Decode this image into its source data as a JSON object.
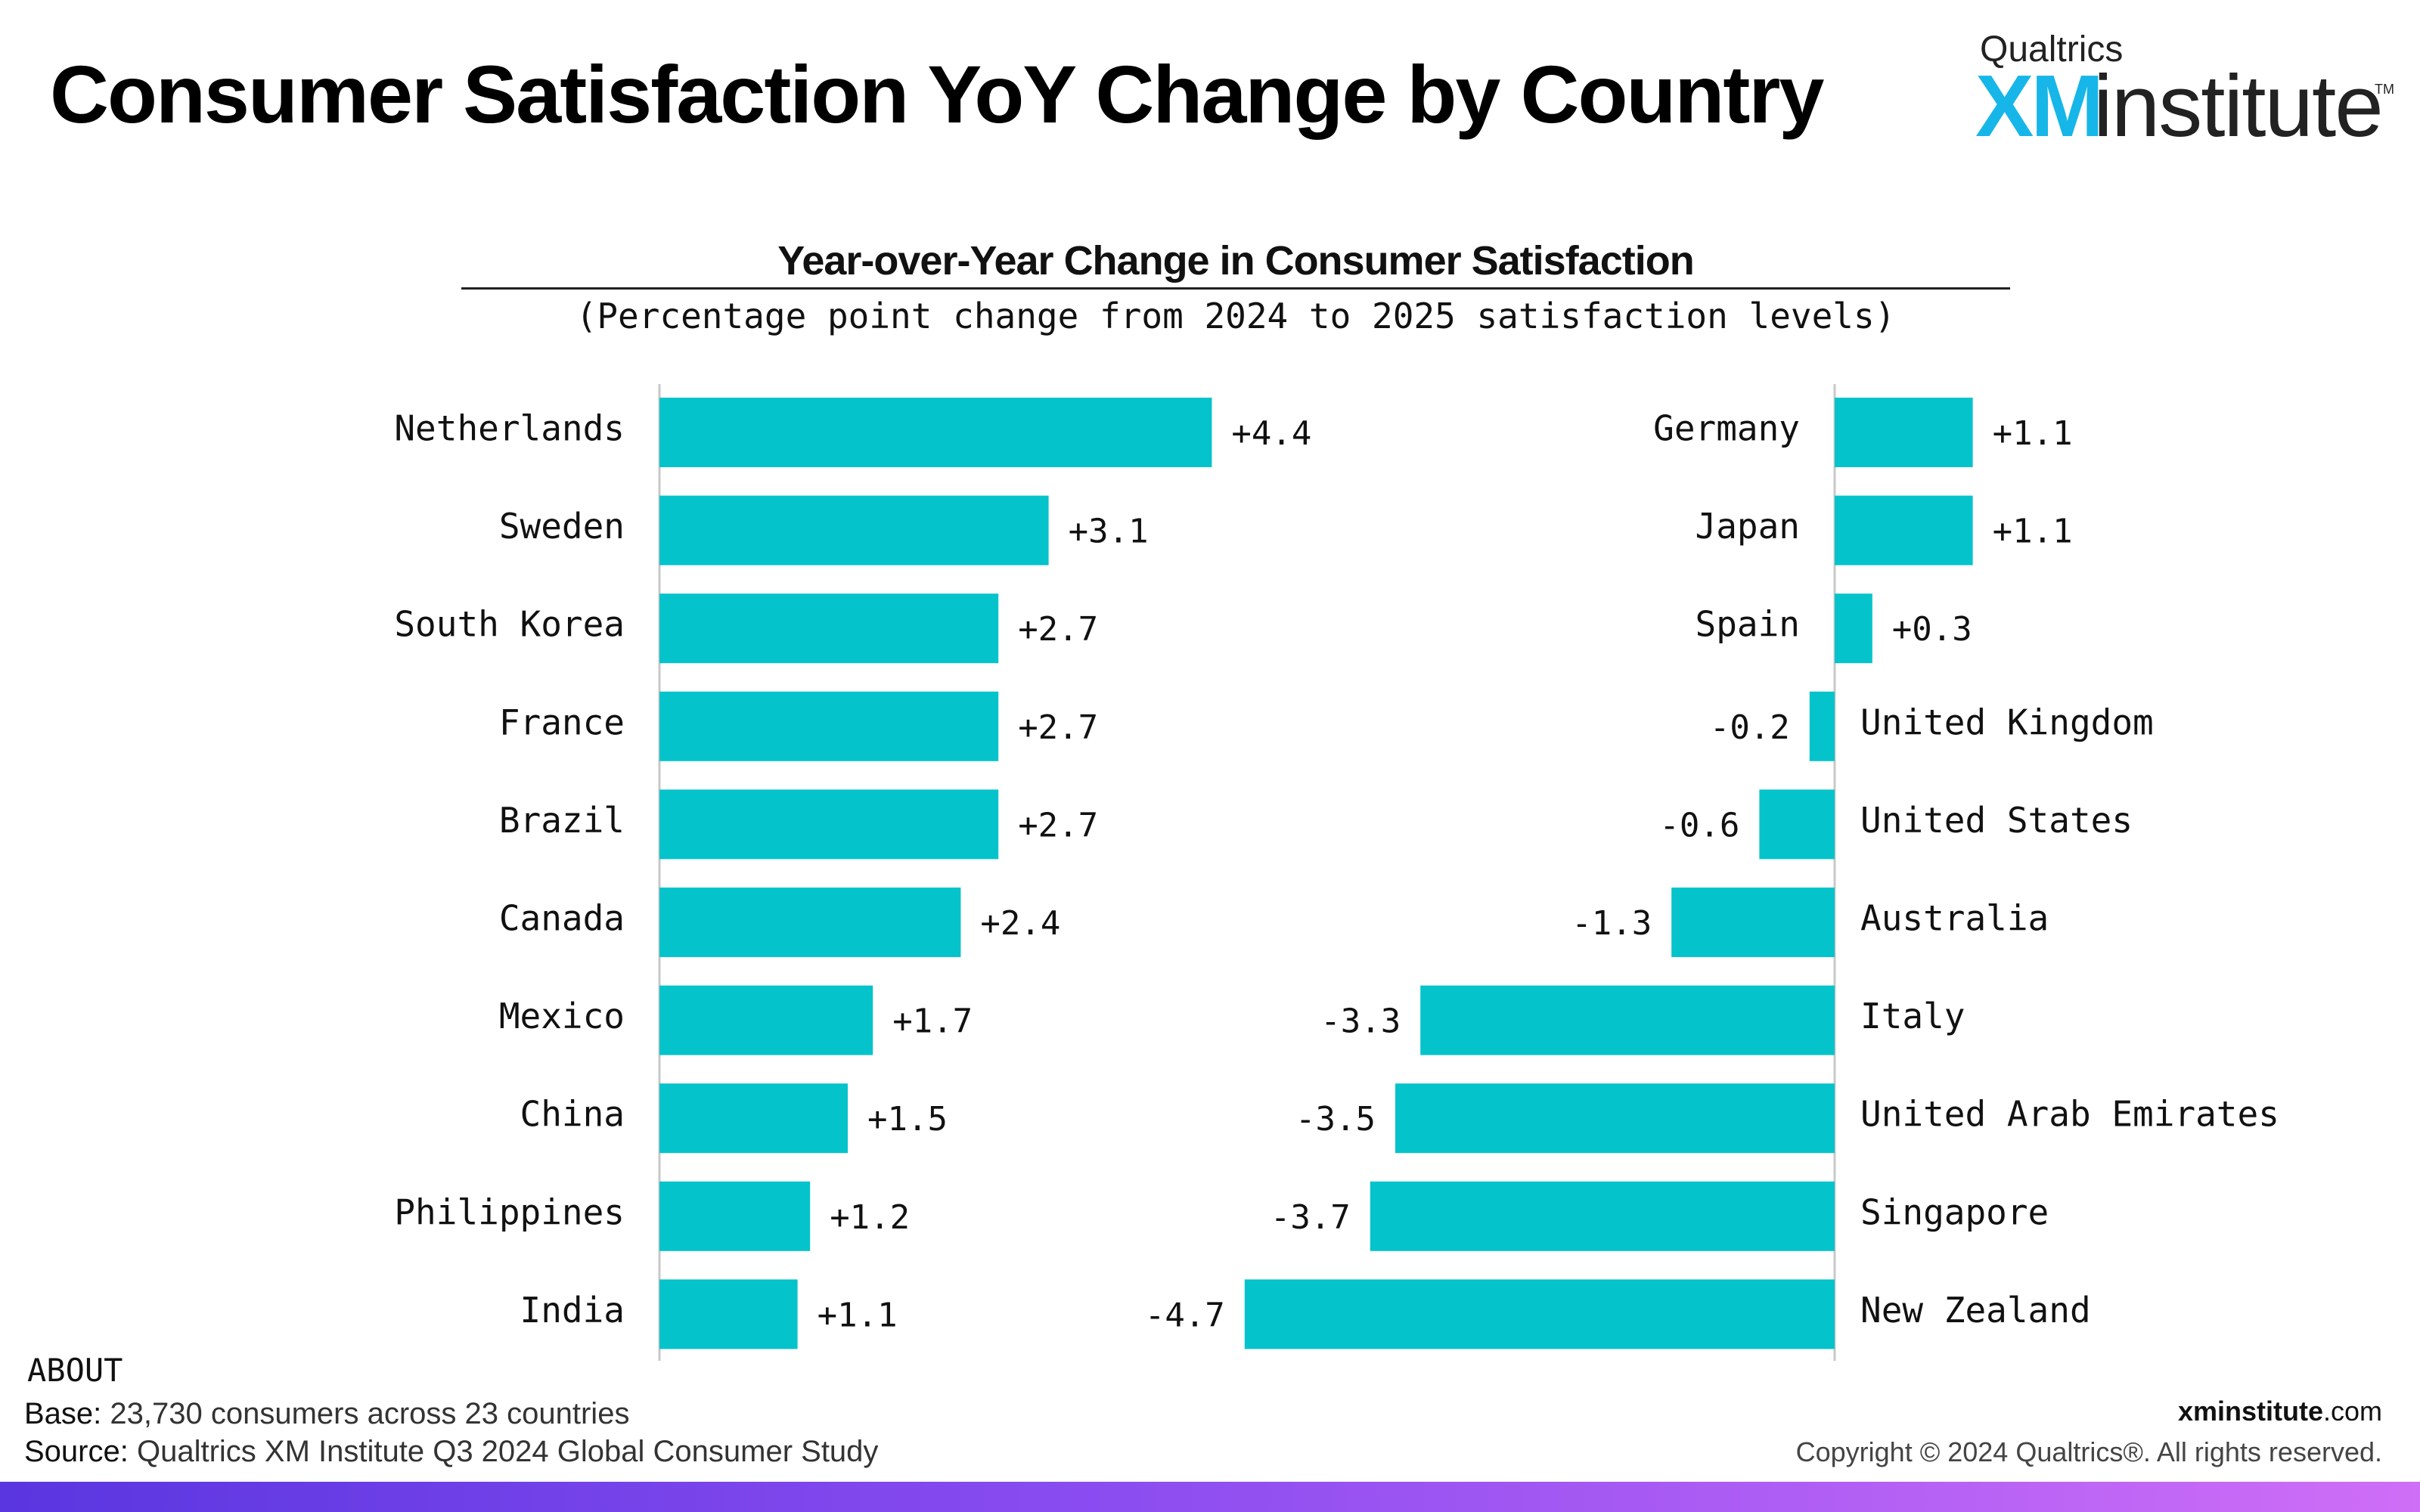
{
  "page": {
    "title": "Consumer Satisfaction YoY Change by Country"
  },
  "brand": {
    "top": "Qualtrics",
    "xm": "XM",
    "institute": "institute",
    "tm": "TM"
  },
  "colors": {
    "bar": "#05c3cb",
    "brand_blue": "#17b6e8",
    "band_start": "#5a36e0",
    "band_end": "#cf6ef7"
  },
  "chart_data": {
    "type": "bar",
    "orientation": "horizontal",
    "title": "Year-over-Year Change in Consumer Satisfaction",
    "subtitle": "(Percentage point change from 2024 to 2025 satisfaction levels)",
    "xlabel": "",
    "ylabel": "",
    "grid": false,
    "legend": "none",
    "panels": [
      {
        "categories": [
          "Netherlands",
          "Sweden",
          "South Korea",
          "France",
          "Brazil",
          "Canada",
          "Mexico",
          "China",
          "Philippines",
          "India"
        ],
        "values": [
          4.4,
          3.1,
          2.7,
          2.7,
          2.7,
          2.4,
          1.7,
          1.5,
          1.2,
          1.1
        ],
        "labels": [
          "+4.4",
          "+3.1",
          "+2.7",
          "+2.7",
          "+2.7",
          "+2.4",
          "+1.7",
          "+1.5",
          "+1.2",
          "+1.1"
        ]
      },
      {
        "categories": [
          "Germany",
          "Japan",
          "Spain",
          "United Kingdom",
          "United States",
          "Australia",
          "Italy",
          "United Arab Emirates",
          "Singapore",
          "New Zealand"
        ],
        "values": [
          1.1,
          1.1,
          0.3,
          -0.2,
          -0.6,
          -1.3,
          -3.3,
          -3.5,
          -3.7,
          -4.7
        ],
        "labels": [
          "+1.1",
          "+1.1",
          "+0.3",
          "-0.2",
          "-0.6",
          "-1.3",
          "-3.3",
          "-3.5",
          "-3.7",
          "-4.7"
        ]
      }
    ]
  },
  "about": {
    "heading": "ABOUT",
    "base_label": "Base:",
    "base_text": " 23,730 consumers across 23 countries",
    "source_label": "Source:",
    "source_text": " Qualtrics XM Institute Q3 2024 Global Consumer Study"
  },
  "footer": {
    "site_bold": "xminstitute",
    "site_rest": ".com",
    "copyright": "Copyright © 2024 Qualtrics®. All rights reserved."
  }
}
